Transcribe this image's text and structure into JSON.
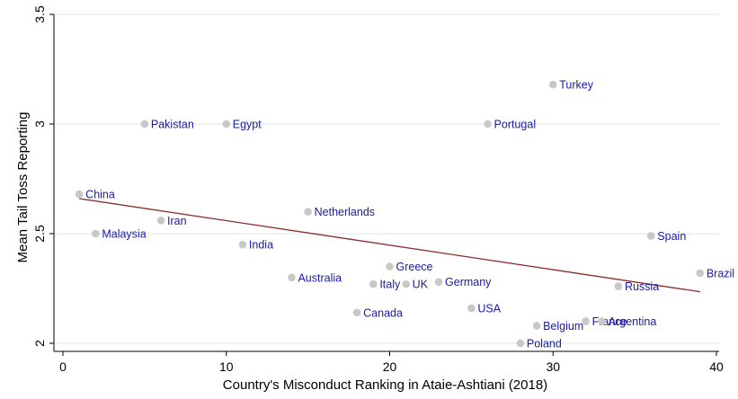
{
  "chart_data": {
    "type": "scatter",
    "title": "",
    "xlabel": "Country's Misconduct Ranking in Ataie-Ashtiani (2018)",
    "ylabel": "Mean Tail Toss Reporting",
    "xlim": [
      0,
      40
    ],
    "ylim": [
      2,
      3.5
    ],
    "x_ticks": [
      0,
      10,
      20,
      30,
      40
    ],
    "y_ticks": [
      2,
      2.5,
      3,
      3.5
    ],
    "x_tick_labels": [
      "0",
      "10",
      "20",
      "30",
      "40"
    ],
    "y_tick_labels": [
      "2",
      "2.5",
      "3",
      "3.5"
    ],
    "grid": "horizontal",
    "legend": "none",
    "colors": {
      "marker": "#c8c8c8",
      "label": "#1a1aa6",
      "fit_line": "#8b2b2b",
      "grid": "#dde8ee",
      "axis": "#000000"
    },
    "points": [
      {
        "label": "China",
        "x": 1,
        "y": 2.68
      },
      {
        "label": "Malaysia",
        "x": 2,
        "y": 2.5
      },
      {
        "label": "Pakistan",
        "x": 5,
        "y": 3.0
      },
      {
        "label": "Iran",
        "x": 6,
        "y": 2.56
      },
      {
        "label": "Egypt",
        "x": 10,
        "y": 3.0
      },
      {
        "label": "India",
        "x": 11,
        "y": 2.45
      },
      {
        "label": "Australia",
        "x": 14,
        "y": 2.3
      },
      {
        "label": "Netherlands",
        "x": 15,
        "y": 2.6
      },
      {
        "label": "Canada",
        "x": 18,
        "y": 2.14
      },
      {
        "label": "Italy",
        "x": 19,
        "y": 2.27
      },
      {
        "label": "Greece",
        "x": 20,
        "y": 2.35
      },
      {
        "label": "UK",
        "x": 21,
        "y": 2.27
      },
      {
        "label": "Germany",
        "x": 23,
        "y": 2.28
      },
      {
        "label": "USA",
        "x": 25,
        "y": 2.16
      },
      {
        "label": "Portugal",
        "x": 26,
        "y": 3.0
      },
      {
        "label": "Poland",
        "x": 28,
        "y": 2.0
      },
      {
        "label": "Belgium",
        "x": 29,
        "y": 2.08
      },
      {
        "label": "Turkey",
        "x": 30,
        "y": 3.18
      },
      {
        "label": "France",
        "x": 32,
        "y": 2.1
      },
      {
        "label": "Argentina",
        "x": 33,
        "y": 2.1
      },
      {
        "label": "Russia",
        "x": 34,
        "y": 2.26
      },
      {
        "label": "Spain",
        "x": 36,
        "y": 2.49
      },
      {
        "label": "Brazil",
        "x": 39,
        "y": 2.32
      }
    ],
    "fit_line": {
      "x": [
        1,
        39
      ],
      "y": [
        2.66,
        2.235
      ]
    }
  }
}
